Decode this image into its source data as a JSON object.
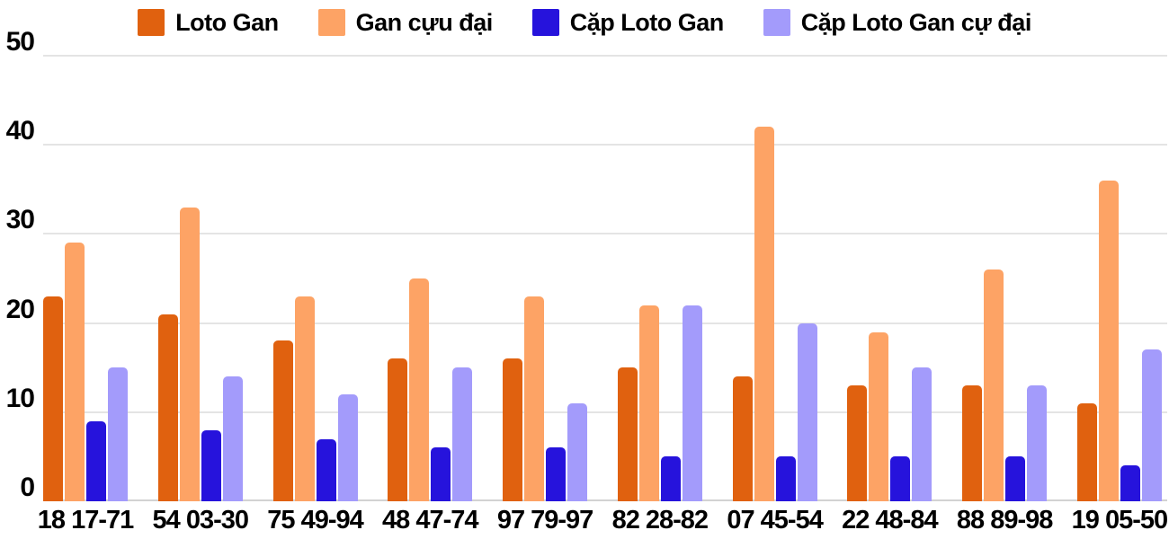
{
  "chart_data": {
    "type": "bar",
    "title": "",
    "categories": [
      "18 17-71",
      "54 03-30",
      "75 49-94",
      "48 47-74",
      "97 79-97",
      "82 28-82",
      "07 45-54",
      "22 48-84",
      "88 89-98",
      "19 05-50"
    ],
    "series": [
      {
        "name": "Loto Gan",
        "color": "#e0610f",
        "values": [
          23,
          21,
          18,
          16,
          16,
          15,
          14,
          13,
          13,
          11
        ]
      },
      {
        "name": "Gan cựu đại",
        "color": "#fda365",
        "values": [
          29,
          33,
          23,
          25,
          23,
          22,
          42,
          19,
          26,
          36
        ]
      },
      {
        "name": "Cặp Loto Gan",
        "color": "#2613dc",
        "values": [
          9,
          8,
          7,
          6,
          6,
          5,
          5,
          5,
          5,
          4
        ]
      },
      {
        "name": "Cặp Loto Gan cự đại",
        "color": "#a39bfb",
        "values": [
          15,
          14,
          12,
          15,
          11,
          22,
          20,
          15,
          13,
          17
        ]
      }
    ],
    "xlabel": "",
    "ylabel": "",
    "ylim": [
      0,
      50
    ],
    "yticks": [
      0,
      10,
      20,
      30,
      40,
      50
    ],
    "grid": true,
    "legend_position": "top",
    "background_color": "#ffffff",
    "gridline_color": "#e4e4e4",
    "text_color": "#000000"
  }
}
